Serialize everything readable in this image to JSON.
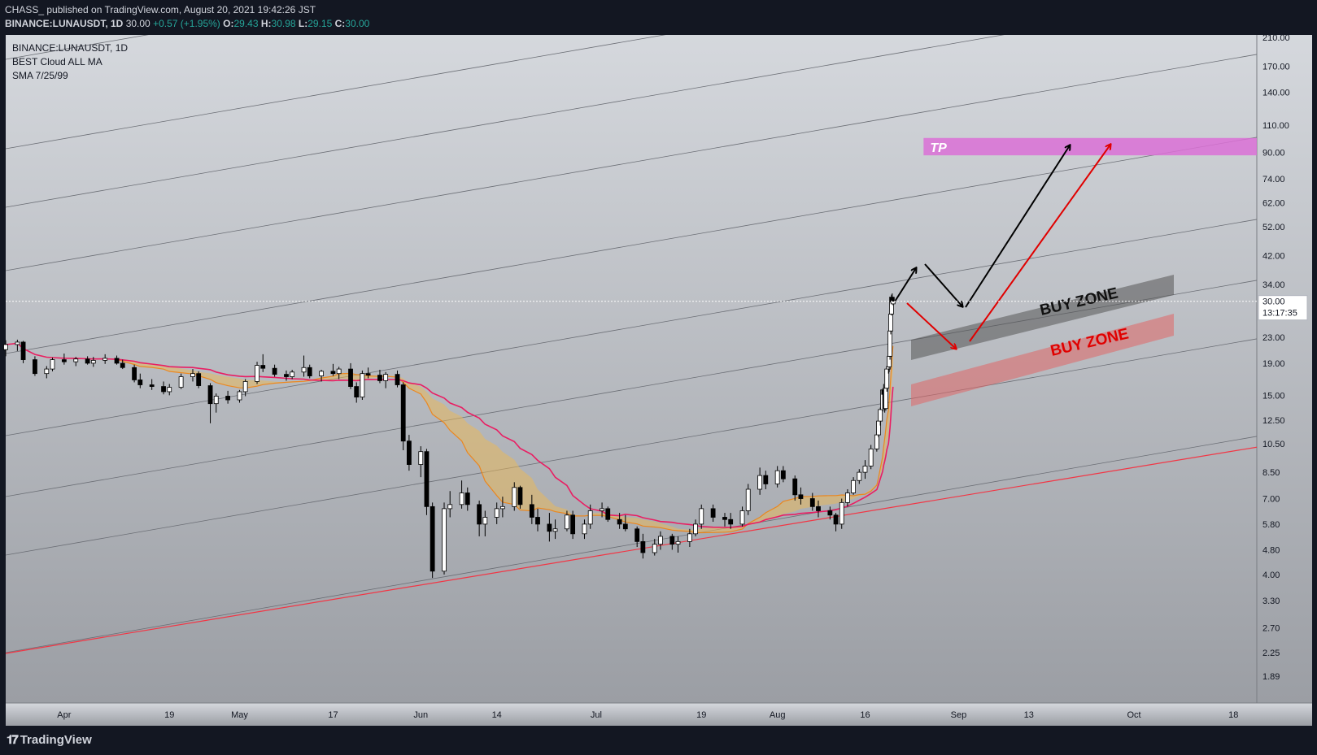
{
  "header": {
    "publisher_line": "CHASS_ published on TradingView.com, August 20, 2021 19:42:26 JST",
    "symbol": "BINANCE:LUNAUSDT, 1D",
    "last": "30.00",
    "change": "+0.57 (+1.95%)",
    "o_label": "O:",
    "o_value": "29.43",
    "h_label": "H:",
    "h_value": "30.98",
    "l_label": "L:",
    "l_value": "29.15",
    "c_label": "C:",
    "c_value": "30.00"
  },
  "legend": {
    "symbol": "BINANCE:LUNAUSDT, 1D",
    "indicator1": "BEST Cloud ALL MA",
    "indicator2": "SMA 7/25/99"
  },
  "footer": {
    "brand": "TradingView",
    "logo": "tradingview-logo-icon"
  },
  "colors": {
    "bg_top": "#d5d8dd",
    "bg_bottom": "#9b9ea4",
    "red_line": "#f23645",
    "channel_line": "#6b6e75",
    "cloud": "#e8b85c",
    "sma_pink": "#e91e63",
    "tp_zone": "#da70d6",
    "buy_zone_dark": "#555555",
    "buy_zone_red": "#e06666",
    "arrow_black": "#000000",
    "arrow_red": "#e00000"
  },
  "chart_data": {
    "type": "candlestick",
    "scale": "log",
    "ylim": [
      1.89,
      210
    ],
    "y_ticks": [
      210.0,
      170.0,
      140.0,
      110.0,
      90.0,
      74.0,
      62.0,
      52.0,
      42.0,
      34.0,
      23.0,
      19.0,
      15.0,
      12.5,
      10.5,
      8.5,
      7.0,
      5.8,
      4.8,
      4.0,
      3.3,
      2.7,
      2.25,
      1.89
    ],
    "x_ticks": [
      "Apr",
      "19",
      "May",
      "17",
      "Jun",
      "14",
      "Jul",
      "19",
      "Aug",
      "16",
      "Sep",
      "13",
      "Oct",
      "18"
    ],
    "x_range": [
      "2021-03-22",
      "2021-10-22"
    ],
    "x_tick_dates": [
      "2021-04-01",
      "2021-04-19",
      "2021-05-01",
      "2021-05-17",
      "2021-06-01",
      "2021-06-14",
      "2021-07-01",
      "2021-07-19",
      "2021-08-01",
      "2021-08-16",
      "2021-09-01",
      "2021-09-13",
      "2021-10-01",
      "2021-10-18"
    ],
    "last_price": "30.00",
    "countdown": "13:17:35",
    "annotations": {
      "tp_label": "TP",
      "tp_zone": [
        88,
        100
      ],
      "tp_zone_dates": [
        "2021-08-26",
        "2021-10-27"
      ],
      "buy_zone_1_label": "BUY ZONE",
      "buy_zone_2_label": "BUY ZONE"
    },
    "candles": [
      [
        "2021-03-22",
        21.0,
        22.5,
        20.0,
        21.8
      ],
      [
        "2021-03-24",
        21.8,
        22.6,
        20.8,
        22.2
      ],
      [
        "2021-03-25",
        22.2,
        22.4,
        19.0,
        19.5
      ],
      [
        "2021-03-27",
        19.5,
        20.0,
        17.3,
        17.6
      ],
      [
        "2021-03-29",
        17.6,
        18.6,
        17.0,
        18.2
      ],
      [
        "2021-03-30",
        18.2,
        19.8,
        17.9,
        19.5
      ],
      [
        "2021-04-01",
        19.5,
        20.4,
        18.8,
        19.2
      ],
      [
        "2021-04-03",
        19.2,
        19.9,
        18.6,
        19.6
      ],
      [
        "2021-04-05",
        19.6,
        20.0,
        18.8,
        19.0
      ],
      [
        "2021-04-06",
        19.0,
        19.9,
        18.5,
        19.4
      ],
      [
        "2021-04-08",
        19.4,
        20.3,
        18.9,
        19.7
      ],
      [
        "2021-04-10",
        19.7,
        20.1,
        18.8,
        19.0
      ],
      [
        "2021-04-11",
        19.0,
        19.5,
        18.2,
        18.4
      ],
      [
        "2021-04-13",
        18.4,
        18.8,
        16.5,
        16.8
      ],
      [
        "2021-04-14",
        16.8,
        17.6,
        15.8,
        16.2
      ],
      [
        "2021-04-16",
        16.2,
        16.9,
        15.6,
        16.0
      ],
      [
        "2021-04-18",
        16.0,
        16.6,
        15.1,
        15.4
      ],
      [
        "2021-04-19",
        15.4,
        16.3,
        15.0,
        15.9
      ],
      [
        "2021-04-21",
        15.9,
        17.6,
        15.7,
        17.2
      ],
      [
        "2021-04-23",
        17.2,
        18.2,
        16.6,
        17.6
      ],
      [
        "2021-04-24",
        17.6,
        17.9,
        15.8,
        16.1
      ],
      [
        "2021-04-26",
        16.1,
        16.4,
        12.2,
        14.1
      ],
      [
        "2021-04-27",
        14.1,
        15.2,
        13.2,
        14.9
      ],
      [
        "2021-04-29",
        14.9,
        15.5,
        14.1,
        14.5
      ],
      [
        "2021-05-01",
        14.5,
        15.6,
        14.2,
        15.4
      ],
      [
        "2021-05-02",
        15.4,
        16.9,
        14.9,
        16.6
      ],
      [
        "2021-05-04",
        16.6,
        19.2,
        16.3,
        18.7
      ],
      [
        "2021-05-05",
        18.7,
        20.3,
        17.8,
        18.3
      ],
      [
        "2021-05-07",
        18.3,
        18.8,
        17.2,
        17.5
      ],
      [
        "2021-05-09",
        17.5,
        18.0,
        16.7,
        17.2
      ],
      [
        "2021-05-10",
        17.2,
        18.1,
        16.9,
        17.8
      ],
      [
        "2021-05-12",
        17.8,
        20.1,
        17.2,
        18.4
      ],
      [
        "2021-05-13",
        18.4,
        18.8,
        17.0,
        17.3
      ],
      [
        "2021-05-15",
        17.3,
        18.1,
        16.6,
        17.9
      ],
      [
        "2021-05-17",
        17.9,
        18.9,
        17.3,
        17.6
      ],
      [
        "2021-05-18",
        17.6,
        18.5,
        16.9,
        18.2
      ],
      [
        "2021-05-20",
        18.2,
        19.0,
        15.7,
        16.0
      ],
      [
        "2021-05-21",
        16.0,
        16.5,
        14.2,
        14.8
      ],
      [
        "2021-05-22",
        14.8,
        18.0,
        14.5,
        17.6
      ],
      [
        "2021-05-23",
        17.6,
        18.4,
        17.0,
        17.4
      ],
      [
        "2021-05-25",
        17.4,
        18.1,
        16.4,
        16.7
      ],
      [
        "2021-05-26",
        16.7,
        17.8,
        15.8,
        17.5
      ],
      [
        "2021-05-28",
        17.5,
        18.0,
        15.9,
        16.2
      ],
      [
        "2021-05-29",
        16.2,
        16.5,
        10.0,
        10.7
      ],
      [
        "2021-05-30",
        10.7,
        11.2,
        8.6,
        9.0
      ],
      [
        "2021-06-01",
        9.0,
        10.3,
        8.2,
        9.9
      ],
      [
        "2021-06-02",
        9.9,
        10.1,
        6.2,
        6.6
      ],
      [
        "2021-06-03",
        6.6,
        6.8,
        3.9,
        4.1
      ],
      [
        "2021-06-05",
        4.1,
        6.8,
        4.0,
        6.5
      ],
      [
        "2021-06-06",
        6.5,
        7.4,
        6.1,
        6.7
      ],
      [
        "2021-06-08",
        6.7,
        8.0,
        6.5,
        7.3
      ],
      [
        "2021-06-09",
        7.3,
        7.6,
        6.4,
        6.7
      ],
      [
        "2021-06-11",
        6.7,
        6.9,
        5.3,
        5.8
      ],
      [
        "2021-06-12",
        5.8,
        6.4,
        5.3,
        6.1
      ],
      [
        "2021-06-14",
        6.1,
        6.8,
        5.8,
        6.5
      ],
      [
        "2021-06-15",
        6.5,
        7.1,
        6.1,
        6.6
      ],
      [
        "2021-06-17",
        6.6,
        7.9,
        6.4,
        7.6
      ],
      [
        "2021-06-18",
        7.6,
        7.7,
        6.5,
        6.7
      ],
      [
        "2021-06-20",
        6.7,
        7.2,
        5.8,
        6.1
      ],
      [
        "2021-06-21",
        6.1,
        6.5,
        5.5,
        5.8
      ],
      [
        "2021-06-23",
        5.8,
        6.3,
        5.1,
        5.5
      ],
      [
        "2021-06-24",
        5.5,
        6.0,
        5.2,
        5.6
      ],
      [
        "2021-06-26",
        5.6,
        6.4,
        5.5,
        6.2
      ],
      [
        "2021-06-27",
        6.2,
        6.4,
        5.2,
        5.4
      ],
      [
        "2021-06-29",
        5.4,
        6.0,
        5.2,
        5.8
      ],
      [
        "2021-06-30",
        5.8,
        6.7,
        5.6,
        6.4
      ],
      [
        "2021-07-02",
        6.4,
        6.8,
        6.1,
        6.5
      ],
      [
        "2021-07-03",
        6.5,
        6.6,
        5.9,
        6.0
      ],
      [
        "2021-07-05",
        6.0,
        6.3,
        5.6,
        5.8
      ],
      [
        "2021-07-06",
        5.8,
        6.2,
        5.5,
        5.6
      ],
      [
        "2021-07-08",
        5.6,
        5.7,
        4.9,
        5.1
      ],
      [
        "2021-07-09",
        5.1,
        5.4,
        4.5,
        4.7
      ],
      [
        "2021-07-11",
        4.7,
        5.2,
        4.6,
        5.0
      ],
      [
        "2021-07-12",
        5.0,
        5.5,
        4.8,
        5.3
      ],
      [
        "2021-07-14",
        5.3,
        5.4,
        4.8,
        5.0
      ],
      [
        "2021-07-15",
        5.0,
        5.3,
        4.7,
        5.1
      ],
      [
        "2021-07-17",
        5.1,
        5.6,
        4.9,
        5.4
      ],
      [
        "2021-07-18",
        5.4,
        6.0,
        5.3,
        5.8
      ],
      [
        "2021-07-19",
        5.8,
        6.7,
        5.6,
        6.5
      ],
      [
        "2021-07-21",
        6.5,
        6.7,
        5.9,
        6.1
      ],
      [
        "2021-07-23",
        6.1,
        6.3,
        5.7,
        6.0
      ],
      [
        "2021-07-24",
        6.0,
        6.3,
        5.6,
        5.8
      ],
      [
        "2021-07-26",
        5.8,
        6.6,
        5.7,
        6.4
      ],
      [
        "2021-07-27",
        6.4,
        7.8,
        6.2,
        7.5
      ],
      [
        "2021-07-29",
        7.5,
        8.8,
        7.2,
        8.3
      ],
      [
        "2021-07-30",
        8.3,
        8.6,
        7.5,
        7.8
      ],
      [
        "2021-08-01",
        7.8,
        8.9,
        7.6,
        8.6
      ],
      [
        "2021-08-02",
        8.6,
        8.9,
        7.9,
        8.1
      ],
      [
        "2021-08-04",
        8.1,
        8.3,
        6.9,
        7.2
      ],
      [
        "2021-08-05",
        7.2,
        7.6,
        6.7,
        7.0
      ],
      [
        "2021-08-07",
        7.0,
        7.3,
        6.4,
        6.6
      ],
      [
        "2021-08-08",
        6.6,
        6.9,
        6.1,
        6.4
      ],
      [
        "2021-08-10",
        6.4,
        6.6,
        6.0,
        6.2
      ],
      [
        "2021-08-11",
        6.2,
        6.3,
        5.5,
        5.8
      ],
      [
        "2021-08-12",
        5.8,
        7.0,
        5.6,
        6.8
      ],
      [
        "2021-08-13",
        6.8,
        7.5,
        6.6,
        7.3
      ],
      [
        "2021-08-14",
        7.3,
        8.2,
        7.2,
        8.0
      ],
      [
        "2021-08-15",
        8.0,
        8.7,
        7.8,
        8.5
      ],
      [
        "2021-08-16",
        8.5,
        9.3,
        8.1,
        8.9
      ],
      [
        "2021-08-17",
        8.9,
        10.4,
        8.7,
        10.1
      ],
      [
        "2021-08-18",
        10.1,
        11.5,
        9.9,
        11.2
      ],
      [
        "2021-08-18",
        11.2,
        12.7,
        11.0,
        12.4
      ],
      [
        "2021-08-18",
        12.4,
        13.7,
        12.0,
        13.5
      ],
      [
        "2021-08-19",
        13.5,
        15.8,
        13.3,
        15.6
      ],
      [
        "2021-08-19",
        15.6,
        16.3,
        14.8,
        15.1
      ],
      [
        "2021-08-19",
        15.1,
        15.4,
        13.2,
        13.6
      ],
      [
        "2021-08-19",
        13.6,
        16.0,
        13.4,
        15.8
      ],
      [
        "2021-08-19",
        15.8,
        18.6,
        15.4,
        18.2
      ],
      [
        "2021-08-20",
        18.2,
        19.9,
        17.6,
        18.5
      ],
      [
        "2021-08-20",
        18.5,
        20.5,
        17.8,
        20.0
      ],
      [
        "2021-08-20",
        20.0,
        24.5,
        19.5,
        24.1
      ],
      [
        "2021-08-20",
        24.1,
        27.8,
        23.5,
        27.3
      ],
      [
        "2021-08-20",
        27.3,
        31.5,
        27.0,
        30.9
      ],
      [
        "2021-08-20",
        30.9,
        31.8,
        29.5,
        29.8
      ],
      [
        "2021-08-20",
        29.43,
        30.98,
        29.15,
        30.0
      ]
    ]
  }
}
